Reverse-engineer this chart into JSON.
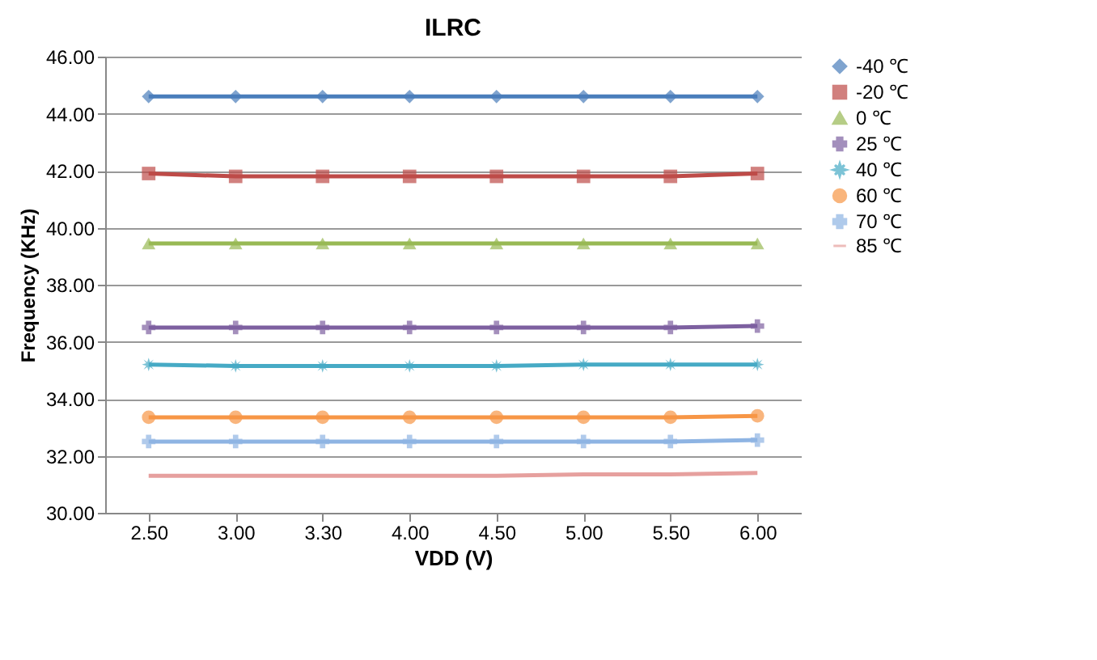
{
  "chart_data": {
    "type": "line",
    "title": "ILRC",
    "xlabel": "VDD (V)",
    "ylabel": "Frequency (KHz)",
    "categories": [
      "2.50",
      "3.00",
      "3.30",
      "4.00",
      "4.50",
      "5.00",
      "5.50",
      "6.00"
    ],
    "ylim": [
      30,
      46
    ],
    "yticks": [
      {
        "value": 30,
        "label": "30.00"
      },
      {
        "value": 32,
        "label": "32.00"
      },
      {
        "value": 34,
        "label": "34.00"
      },
      {
        "value": 36,
        "label": "36.00"
      },
      {
        "value": 38,
        "label": "38.00"
      },
      {
        "value": 40,
        "label": "40.00"
      },
      {
        "value": 42,
        "label": "42.00"
      },
      {
        "value": 44,
        "label": "44.00"
      },
      {
        "value": 46,
        "label": "46.00"
      }
    ],
    "grid": "y",
    "legend": "right",
    "series": [
      {
        "name": "-40 ℃",
        "color": "#4a7ebb",
        "marker": "diamond",
        "values": [
          44.6,
          44.6,
          44.6,
          44.6,
          44.6,
          44.6,
          44.6,
          44.6
        ]
      },
      {
        "name": "-20 ℃",
        "color": "#be4b48",
        "marker": "square",
        "values": [
          41.9,
          41.8,
          41.8,
          41.8,
          41.8,
          41.8,
          41.8,
          41.9
        ]
      },
      {
        "name": "0 ℃",
        "color": "#98b954",
        "marker": "triangle",
        "values": [
          39.45,
          39.45,
          39.45,
          39.45,
          39.45,
          39.45,
          39.45,
          39.45
        ]
      },
      {
        "name": "25 ℃",
        "color": "#7d60a0",
        "marker": "cross",
        "values": [
          36.5,
          36.5,
          36.5,
          36.5,
          36.5,
          36.5,
          36.5,
          36.55
        ]
      },
      {
        "name": "40 ℃",
        "color": "#46aac5",
        "marker": "star",
        "values": [
          35.2,
          35.15,
          35.15,
          35.15,
          35.15,
          35.2,
          35.2,
          35.2
        ]
      },
      {
        "name": "60 ℃",
        "color": "#f79646",
        "marker": "circle",
        "values": [
          33.35,
          33.35,
          33.35,
          33.35,
          33.35,
          33.35,
          33.35,
          33.4
        ]
      },
      {
        "name": "70 ℃",
        "color": "#8eb4e3",
        "marker": "cross",
        "values": [
          32.5,
          32.5,
          32.5,
          32.5,
          32.5,
          32.5,
          32.5,
          32.55
        ]
      },
      {
        "name": "85 ℃",
        "color": "#e6a09e",
        "marker": "none",
        "values": [
          31.3,
          31.3,
          31.3,
          31.3,
          31.3,
          31.35,
          31.35,
          31.4
        ]
      }
    ]
  }
}
